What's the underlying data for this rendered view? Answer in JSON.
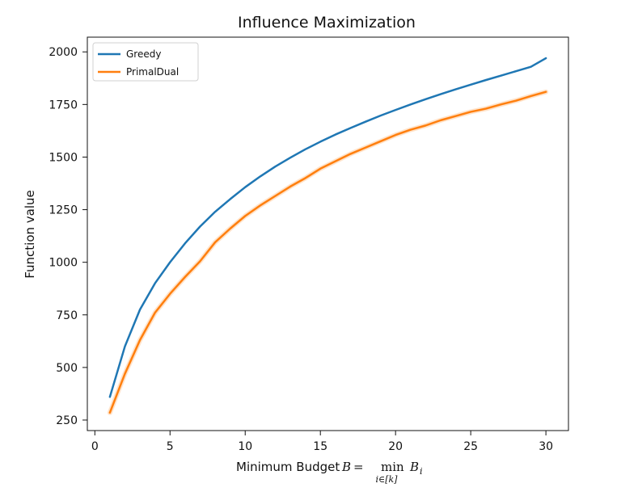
{
  "chart_data": {
    "type": "line",
    "title": "Influence Maximization",
    "xlabel": {
      "prefix": "Minimum Budget",
      "var": "B",
      "equals": "=",
      "op": "min",
      "sub": "i∈[k]",
      "term": "B",
      "term_sub": "i"
    },
    "ylabel": "Function value",
    "xlim": [
      -0.5,
      31.5
    ],
    "ylim": [
      200,
      2070
    ],
    "xticks": [
      0,
      5,
      10,
      15,
      20,
      25,
      30
    ],
    "xtick_labels": [
      "0",
      "5",
      "10",
      "15",
      "20",
      "25",
      "30"
    ],
    "yticks": [
      250,
      500,
      750,
      1000,
      1250,
      1500,
      1750,
      2000
    ],
    "ytick_labels": [
      "250",
      "500",
      "750",
      "1000",
      "1250",
      "1500",
      "1750",
      "2000"
    ],
    "grid": false,
    "legend": {
      "position": "top-left"
    },
    "x": [
      1,
      2,
      3,
      4,
      5,
      6,
      7,
      8,
      9,
      10,
      11,
      12,
      13,
      14,
      15,
      16,
      17,
      18,
      19,
      20,
      21,
      22,
      23,
      24,
      25,
      26,
      27,
      28,
      29,
      30
    ],
    "series": [
      {
        "name": "Greedy",
        "color": "#1f77b4",
        "values": [
          360,
          600,
          775,
          900,
          1000,
          1090,
          1170,
          1240,
          1300,
          1357,
          1408,
          1455,
          1497,
          1537,
          1573,
          1607,
          1638,
          1668,
          1697,
          1724,
          1750,
          1775,
          1799,
          1822,
          1844,
          1866,
          1887,
          1908,
          1929,
          1970
        ]
      },
      {
        "name": "PrimalDual",
        "color": "#ff7f0e",
        "values": [
          285,
          470,
          630,
          760,
          850,
          930,
          1005,
          1095,
          1160,
          1220,
          1270,
          1315,
          1360,
          1400,
          1445,
          1480,
          1515,
          1545,
          1575,
          1605,
          1630,
          1650,
          1675,
          1695,
          1715,
          1730,
          1750,
          1768,
          1790,
          1810
        ]
      }
    ]
  }
}
